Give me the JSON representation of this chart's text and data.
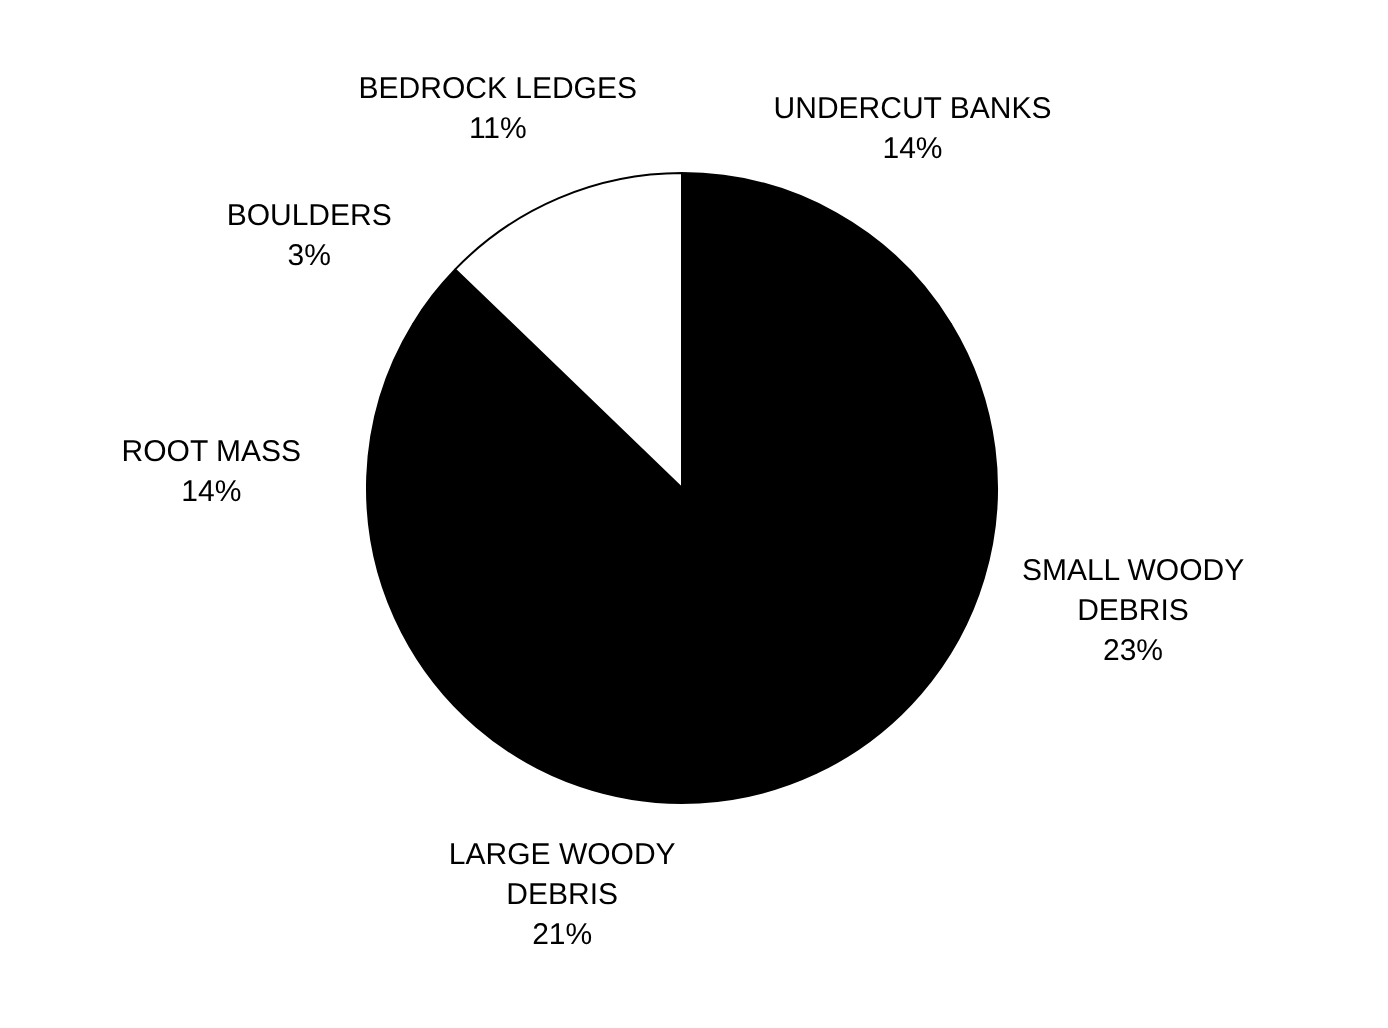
{
  "chart_data": {
    "type": "pie",
    "categories": [
      "UNDERCUT BANKS",
      "SMALL WOODY DEBRIS",
      "LARGE WOODY DEBRIS",
      "ROOT MASS",
      "BOULDERS",
      "BEDROCK LEDGES"
    ],
    "values": [
      14,
      23,
      21,
      14,
      3,
      11
    ],
    "value_labels": [
      "14%",
      "23%",
      "21%",
      "14%",
      "3%",
      "11%"
    ],
    "colors": [
      "#000000",
      "#000000",
      "#000000",
      "#000000",
      "#000000",
      "#ffffff"
    ],
    "legend": false
  }
}
